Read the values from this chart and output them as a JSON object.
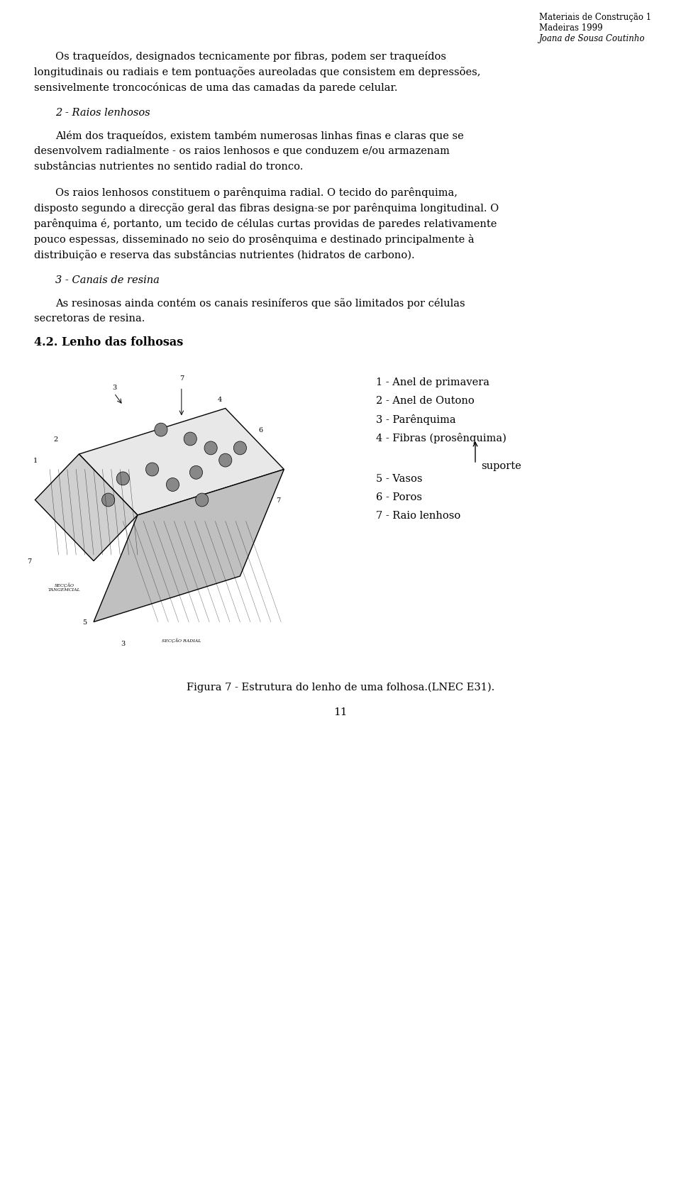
{
  "bg_color": "#ffffff",
  "header_line1": "Materiais de Construção 1",
  "header_line2": "Madeiras 1999",
  "header_line3": "Joana de Sousa Coutinho",
  "para1": "Os traqueídos, designados tecnicamente por fibras, podem ser traqueídos longitudinais ou radiais e tem pontuações aureoladas que consistem em depressões, sensivelmente troncocónicas de uma das camadas da parede celular.",
  "section_title": "2 - Raios lenhosos",
  "para2": "Além dos traqueídos, existem também numerosas linhas finas e claras que se desenvolvem radialmente - os raios lenhosos e que conduzem e/ou armazenam substâncias nutrientes no sentido radial do tronco.",
  "para3": "Os raios lenhosos constituem o parênquima radial. O tecido do parênquima, disposto segundo a direcção geral das fibras designa-se por parênquima longitudinal. O parênquima é, portanto, um tecido de células curtas providas de paredes relativamente pouco espessas, disseminado no seio do prosênquima e destinado principalmente à distribuição e reserva das substâncias nutrientes (hidratos de carbono).",
  "section_title2": "3 - Canais de resina",
  "para4": "As resinosas ainda contém os canais resiníferos que são limitados por células secretoras de resina.",
  "section_title3": "4.2. Lenho das folhosas",
  "legend_items": [
    "1 - Anel de primavera",
    "2 - Anel de Outono",
    "3 - Parênquima",
    "4 - Fibras (prosênquima)",
    "5 - Vasos",
    "6 - Poros",
    "7 - Raio lenhoso"
  ],
  "suporte_label": "suporte",
  "figure_caption": "Figura 7 - Estrutura do lenho de uma folhosa.(LNEC E31).",
  "page_number": "11",
  "text_color": "#000000",
  "font_size_body": 10.5,
  "font_size_header": 9,
  "font_size_section": 11,
  "font_size_bold": 11
}
